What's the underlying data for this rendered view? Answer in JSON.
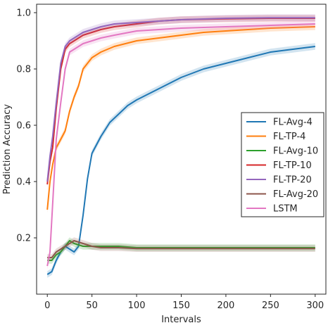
{
  "chart_data": {
    "type": "line",
    "title": "",
    "xlabel": "Intervals",
    "ylabel": "Prediction Accuracy",
    "xlim": [
      -12,
      312
    ],
    "ylim": [
      0.0,
      1.03
    ],
    "xticks": [
      0,
      50,
      100,
      150,
      200,
      250,
      300
    ],
    "yticks": [
      0.2,
      0.4,
      0.6,
      0.8,
      1.0
    ],
    "xtick_labels": [
      "0",
      "50",
      "100",
      "150",
      "200",
      "250",
      "300"
    ],
    "ytick_labels": [
      "0.2",
      "0.4",
      "0.6",
      "0.8",
      "1.0"
    ],
    "grid": false,
    "legend_position": "center-right",
    "series": [
      {
        "name": "FL-Avg-4",
        "color": "#1f77b4",
        "x": [
          0,
          5,
          10,
          15,
          20,
          25,
          30,
          35,
          40,
          45,
          50,
          60,
          70,
          80,
          90,
          100,
          125,
          150,
          175,
          200,
          225,
          250,
          275,
          300
        ],
        "y": [
          0.07,
          0.08,
          0.12,
          0.15,
          0.17,
          0.16,
          0.15,
          0.17,
          0.28,
          0.41,
          0.5,
          0.56,
          0.61,
          0.64,
          0.67,
          0.69,
          0.73,
          0.77,
          0.8,
          0.82,
          0.84,
          0.86,
          0.87,
          0.88
        ]
      },
      {
        "name": "FL-TP-4",
        "color": "#ff7f0e",
        "x": [
          0,
          3,
          6,
          10,
          15,
          20,
          25,
          30,
          35,
          40,
          50,
          60,
          75,
          100,
          125,
          150,
          175,
          200,
          250,
          300
        ],
        "y": [
          0.3,
          0.4,
          0.46,
          0.52,
          0.55,
          0.58,
          0.65,
          0.7,
          0.74,
          0.8,
          0.84,
          0.86,
          0.88,
          0.9,
          0.91,
          0.92,
          0.93,
          0.935,
          0.945,
          0.95
        ]
      },
      {
        "name": "FL-Avg-10",
        "color": "#2ca02c",
        "x": [
          0,
          5,
          10,
          15,
          20,
          25,
          30,
          40,
          50,
          60,
          70,
          80,
          100,
          125,
          150,
          200,
          250,
          300
        ],
        "y": [
          0.12,
          0.12,
          0.14,
          0.15,
          0.17,
          0.19,
          0.18,
          0.17,
          0.17,
          0.17,
          0.17,
          0.17,
          0.165,
          0.165,
          0.165,
          0.165,
          0.165,
          0.165
        ]
      },
      {
        "name": "FL-TP-10",
        "color": "#d62728",
        "x": [
          0,
          3,
          6,
          10,
          15,
          20,
          25,
          30,
          40,
          50,
          60,
          75,
          100,
          125,
          150,
          200,
          250,
          300
        ],
        "y": [
          0.39,
          0.47,
          0.52,
          0.66,
          0.8,
          0.87,
          0.89,
          0.9,
          0.92,
          0.93,
          0.94,
          0.95,
          0.96,
          0.97,
          0.975,
          0.978,
          0.98,
          0.98
        ]
      },
      {
        "name": "FL-TP-20",
        "color": "#9467bd",
        "x": [
          0,
          3,
          6,
          10,
          15,
          20,
          25,
          30,
          40,
          50,
          60,
          75,
          100,
          125,
          150,
          200,
          250,
          300
        ],
        "y": [
          0.4,
          0.49,
          0.56,
          0.68,
          0.82,
          0.88,
          0.9,
          0.91,
          0.93,
          0.94,
          0.95,
          0.96,
          0.965,
          0.97,
          0.975,
          0.98,
          0.982,
          0.982
        ]
      },
      {
        "name": "FL-Avg-20",
        "color": "#8c564b",
        "x": [
          0,
          5,
          10,
          15,
          20,
          25,
          30,
          40,
          50,
          60,
          70,
          80,
          100,
          125,
          150,
          200,
          250,
          300
        ],
        "y": [
          0.13,
          0.13,
          0.15,
          0.16,
          0.17,
          0.18,
          0.19,
          0.18,
          0.17,
          0.165,
          0.165,
          0.165,
          0.162,
          0.162,
          0.162,
          0.162,
          0.162,
          0.162
        ]
      },
      {
        "name": "LSTM",
        "color": "#e377c2",
        "x": [
          0,
          3,
          6,
          10,
          15,
          20,
          25,
          30,
          40,
          50,
          60,
          75,
          100,
          125,
          150,
          200,
          250,
          300
        ],
        "y": [
          0.1,
          0.15,
          0.32,
          0.55,
          0.68,
          0.8,
          0.86,
          0.87,
          0.89,
          0.9,
          0.91,
          0.92,
          0.935,
          0.94,
          0.945,
          0.95,
          0.955,
          0.96
        ]
      }
    ]
  }
}
